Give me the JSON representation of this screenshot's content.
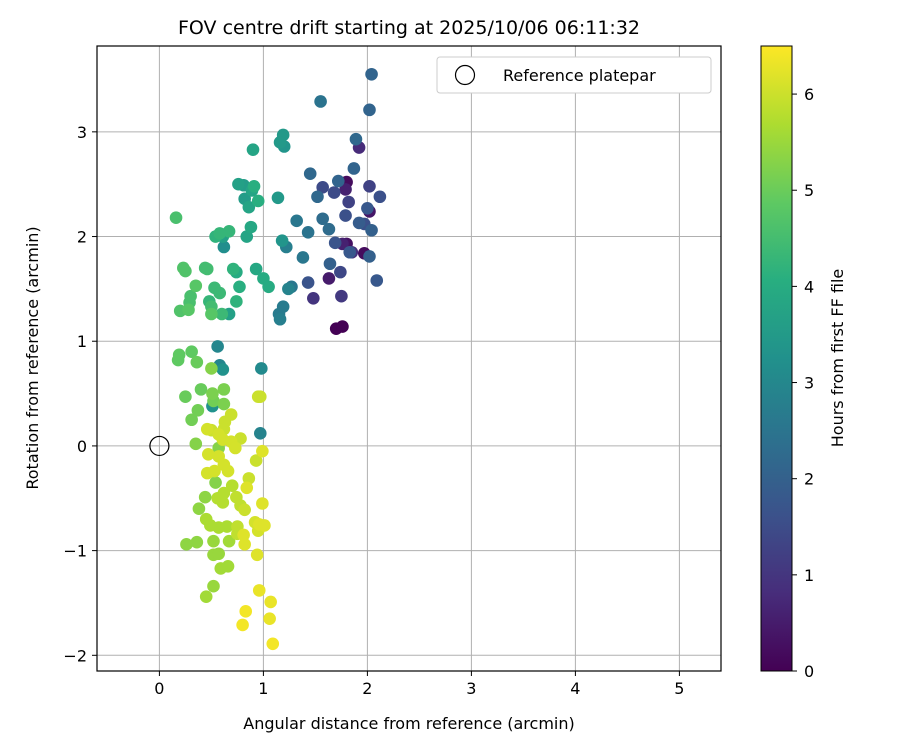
{
  "chart_data": {
    "type": "scatter",
    "title": "FOV centre drift starting at 2025/10/06 06:11:32",
    "xlabel": "Angular distance from reference (arcmin)",
    "ylabel": "Rotation from reference (arcmin)",
    "xlim": [
      -0.6,
      5.4
    ],
    "ylim": [
      -2.15,
      3.82
    ],
    "x_ticks": [
      0,
      1,
      2,
      3,
      4,
      5
    ],
    "y_ticks": [
      -2,
      -1,
      0,
      1,
      2,
      3
    ],
    "grid": true,
    "legend": {
      "placement": "top-right",
      "entries": [
        "Reference platepar"
      ]
    },
    "colorbar": {
      "label": "Hours from first FF file",
      "range": [
        0,
        6.5
      ],
      "ticks": [
        0,
        1,
        2,
        3,
        4,
        5,
        6
      ],
      "colormap": "viridis"
    },
    "reference_point": {
      "x": 0.0,
      "y": 0.0
    },
    "series": [
      {
        "points": [
          {
            "x": 1.7,
            "y": 1.12,
            "t": 0.0
          },
          {
            "x": 1.76,
            "y": 1.14,
            "t": 0.0
          },
          {
            "x": 1.8,
            "y": 2.52,
            "t": 0.2
          },
          {
            "x": 1.97,
            "y": 1.84,
            "t": 0.2
          },
          {
            "x": 1.8,
            "y": 1.93,
            "t": 0.3
          },
          {
            "x": 2.02,
            "y": 2.24,
            "t": 0.4
          },
          {
            "x": 1.63,
            "y": 1.6,
            "t": 0.5
          },
          {
            "x": 1.76,
            "y": 1.93,
            "t": 0.6
          },
          {
            "x": 1.79,
            "y": 2.45,
            "t": 0.6
          },
          {
            "x": 1.92,
            "y": 2.85,
            "t": 0.8
          },
          {
            "x": 1.85,
            "y": 1.85,
            "t": 0.9
          },
          {
            "x": 1.48,
            "y": 1.41,
            "t": 1.0
          },
          {
            "x": 1.75,
            "y": 1.43,
            "t": 1.1
          },
          {
            "x": 2.02,
            "y": 2.48,
            "t": 1.3
          },
          {
            "x": 1.82,
            "y": 2.33,
            "t": 1.3
          },
          {
            "x": 1.74,
            "y": 1.66,
            "t": 1.4
          },
          {
            "x": 1.57,
            "y": 2.47,
            "t": 1.5
          },
          {
            "x": 1.68,
            "y": 2.42,
            "t": 1.5
          },
          {
            "x": 2.12,
            "y": 2.38,
            "t": 1.6
          },
          {
            "x": 1.97,
            "y": 2.12,
            "t": 1.6
          },
          {
            "x": 1.79,
            "y": 2.2,
            "t": 1.6
          },
          {
            "x": 1.43,
            "y": 1.56,
            "t": 1.7
          },
          {
            "x": 1.69,
            "y": 1.94,
            "t": 1.7
          },
          {
            "x": 1.83,
            "y": 1.85,
            "t": 1.8
          },
          {
            "x": 2.09,
            "y": 1.58,
            "t": 1.8
          },
          {
            "x": 2.0,
            "y": 2.27,
            "t": 1.8
          },
          {
            "x": 1.92,
            "y": 2.13,
            "t": 1.9
          },
          {
            "x": 2.04,
            "y": 2.06,
            "t": 2.0
          },
          {
            "x": 2.02,
            "y": 1.81,
            "t": 2.0
          },
          {
            "x": 1.64,
            "y": 1.74,
            "t": 2.0
          },
          {
            "x": 1.72,
            "y": 2.53,
            "t": 2.1
          },
          {
            "x": 1.87,
            "y": 2.65,
            "t": 2.1
          },
          {
            "x": 2.04,
            "y": 3.55,
            "t": 2.1
          },
          {
            "x": 2.02,
            "y": 3.21,
            "t": 2.1
          },
          {
            "x": 1.89,
            "y": 2.93,
            "t": 2.2
          },
          {
            "x": 1.52,
            "y": 2.38,
            "t": 2.2
          },
          {
            "x": 1.45,
            "y": 2.6,
            "t": 2.2
          },
          {
            "x": 1.57,
            "y": 2.17,
            "t": 2.3
          },
          {
            "x": 1.63,
            "y": 2.07,
            "t": 2.3
          },
          {
            "x": 1.43,
            "y": 2.04,
            "t": 2.5
          },
          {
            "x": 1.55,
            "y": 3.29,
            "t": 2.5
          },
          {
            "x": 1.38,
            "y": 1.8,
            "t": 2.6
          },
          {
            "x": 1.27,
            "y": 1.52,
            "t": 2.6
          },
          {
            "x": 1.32,
            "y": 2.15,
            "t": 2.6
          },
          {
            "x": 1.19,
            "y": 1.33,
            "t": 2.7
          },
          {
            "x": 1.15,
            "y": 1.26,
            "t": 2.7
          },
          {
            "x": 1.22,
            "y": 1.9,
            "t": 2.8
          },
          {
            "x": 1.16,
            "y": 1.21,
            "t": 2.8
          },
          {
            "x": 0.97,
            "y": 0.12,
            "t": 2.9
          },
          {
            "x": 1.24,
            "y": 1.5,
            "t": 2.9
          },
          {
            "x": 0.56,
            "y": 0.95,
            "t": 3.0
          },
          {
            "x": 0.58,
            "y": 0.77,
            "t": 3.0
          },
          {
            "x": 0.98,
            "y": 0.74,
            "t": 3.1
          },
          {
            "x": 0.62,
            "y": 1.9,
            "t": 3.2
          },
          {
            "x": 0.61,
            "y": 0.73,
            "t": 3.3
          },
          {
            "x": 0.51,
            "y": 0.38,
            "t": 3.3
          },
          {
            "x": 1.2,
            "y": 2.86,
            "t": 3.4
          },
          {
            "x": 1.18,
            "y": 1.96,
            "t": 3.4
          },
          {
            "x": 1.19,
            "y": 2.97,
            "t": 3.5
          },
          {
            "x": 1.16,
            "y": 2.9,
            "t": 3.5
          },
          {
            "x": 1.14,
            "y": 2.37,
            "t": 3.5
          },
          {
            "x": 0.81,
            "y": 2.49,
            "t": 3.6
          },
          {
            "x": 0.82,
            "y": 2.36,
            "t": 3.6
          },
          {
            "x": 0.67,
            "y": 1.26,
            "t": 3.7
          },
          {
            "x": 0.76,
            "y": 2.5,
            "t": 3.7
          },
          {
            "x": 0.61,
            "y": 2.0,
            "t": 3.7
          },
          {
            "x": 0.89,
            "y": 2.44,
            "t": 3.8
          },
          {
            "x": 0.9,
            "y": 2.83,
            "t": 3.8
          },
          {
            "x": 0.86,
            "y": 2.28,
            "t": 3.8
          },
          {
            "x": 0.84,
            "y": 2.0,
            "t": 3.8
          },
          {
            "x": 0.93,
            "y": 1.69,
            "t": 3.9
          },
          {
            "x": 0.88,
            "y": 2.09,
            "t": 3.9
          },
          {
            "x": 0.74,
            "y": 1.66,
            "t": 4.0
          },
          {
            "x": 1.0,
            "y": 1.6,
            "t": 4.0
          },
          {
            "x": 1.05,
            "y": 1.52,
            "t": 4.0
          },
          {
            "x": 0.95,
            "y": 2.34,
            "t": 4.1
          },
          {
            "x": 0.91,
            "y": 2.48,
            "t": 4.1
          },
          {
            "x": 0.77,
            "y": 1.52,
            "t": 4.1
          },
          {
            "x": 0.71,
            "y": 1.69,
            "t": 4.2
          },
          {
            "x": 0.74,
            "y": 1.38,
            "t": 4.2
          },
          {
            "x": 0.54,
            "y": 2.0,
            "t": 4.2
          },
          {
            "x": 0.67,
            "y": 2.05,
            "t": 4.3
          },
          {
            "x": 0.58,
            "y": 2.03,
            "t": 4.3
          },
          {
            "x": 0.48,
            "y": 1.38,
            "t": 4.3
          },
          {
            "x": 0.53,
            "y": 1.51,
            "t": 4.4
          },
          {
            "x": 0.58,
            "y": 1.46,
            "t": 4.4
          },
          {
            "x": 0.6,
            "y": 1.26,
            "t": 4.4
          },
          {
            "x": 0.5,
            "y": 1.33,
            "t": 4.5
          },
          {
            "x": 0.46,
            "y": 1.69,
            "t": 4.5
          },
          {
            "x": 0.44,
            "y": 1.7,
            "t": 4.5
          },
          {
            "x": 0.29,
            "y": 1.37,
            "t": 4.6
          },
          {
            "x": 0.3,
            "y": 1.43,
            "t": 4.6
          },
          {
            "x": 0.16,
            "y": 2.18,
            "t": 4.6
          },
          {
            "x": 0.25,
            "y": 1.67,
            "t": 4.7
          },
          {
            "x": 0.23,
            "y": 1.7,
            "t": 4.7
          },
          {
            "x": 0.2,
            "y": 1.29,
            "t": 4.7
          },
          {
            "x": 0.35,
            "y": 1.53,
            "t": 4.8
          },
          {
            "x": 0.28,
            "y": 1.3,
            "t": 4.8
          },
          {
            "x": 0.5,
            "y": 1.26,
            "t": 4.8
          },
          {
            "x": 0.19,
            "y": 0.87,
            "t": 4.9
          },
          {
            "x": 0.18,
            "y": 0.82,
            "t": 4.9
          },
          {
            "x": 0.31,
            "y": 0.9,
            "t": 4.9
          },
          {
            "x": 0.36,
            "y": 0.8,
            "t": 5.0
          },
          {
            "x": 0.25,
            "y": 0.47,
            "t": 5.0
          },
          {
            "x": 0.4,
            "y": 0.54,
            "t": 5.0
          },
          {
            "x": 0.37,
            "y": 0.34,
            "t": 5.1
          },
          {
            "x": 0.31,
            "y": 0.25,
            "t": 5.1
          },
          {
            "x": 0.52,
            "y": 0.43,
            "t": 5.1
          },
          {
            "x": 0.51,
            "y": 0.5,
            "t": 5.2
          },
          {
            "x": 0.62,
            "y": 0.54,
            "t": 5.2
          },
          {
            "x": 0.62,
            "y": 0.4,
            "t": 5.2
          },
          {
            "x": 0.5,
            "y": 0.74,
            "t": 5.3
          },
          {
            "x": 0.35,
            "y": 0.02,
            "t": 5.3
          },
          {
            "x": 0.57,
            "y": -0.02,
            "t": 5.3
          },
          {
            "x": 0.54,
            "y": -0.35,
            "t": 5.3
          },
          {
            "x": 0.38,
            "y": -0.6,
            "t": 5.4
          },
          {
            "x": 0.26,
            "y": -0.94,
            "t": 5.4
          },
          {
            "x": 0.36,
            "y": -0.92,
            "t": 5.4
          },
          {
            "x": 0.44,
            "y": -0.49,
            "t": 5.4
          },
          {
            "x": 0.52,
            "y": -0.91,
            "t": 5.5
          },
          {
            "x": 0.52,
            "y": -1.04,
            "t": 5.5
          },
          {
            "x": 0.57,
            "y": -1.03,
            "t": 5.5
          },
          {
            "x": 0.52,
            "y": -1.34,
            "t": 5.5
          },
          {
            "x": 0.45,
            "y": -1.44,
            "t": 5.6
          },
          {
            "x": 0.59,
            "y": -1.17,
            "t": 5.6
          },
          {
            "x": 0.66,
            "y": -1.15,
            "t": 5.6
          },
          {
            "x": 0.67,
            "y": -0.91,
            "t": 5.6
          },
          {
            "x": 0.65,
            "y": -0.77,
            "t": 5.7
          },
          {
            "x": 0.57,
            "y": -0.78,
            "t": 5.7
          },
          {
            "x": 0.45,
            "y": -0.7,
            "t": 5.7
          },
          {
            "x": 0.49,
            "y": -0.76,
            "t": 5.7
          },
          {
            "x": 0.56,
            "y": -0.5,
            "t": 5.8
          },
          {
            "x": 0.61,
            "y": -0.54,
            "t": 5.8
          },
          {
            "x": 0.62,
            "y": -0.45,
            "t": 5.8
          },
          {
            "x": 0.7,
            "y": -0.38,
            "t": 5.8
          },
          {
            "x": 0.74,
            "y": -0.49,
            "t": 5.9
          },
          {
            "x": 0.78,
            "y": -0.57,
            "t": 5.9
          },
          {
            "x": 0.75,
            "y": -0.77,
            "t": 5.9
          },
          {
            "x": 0.75,
            "y": -0.84,
            "t": 5.9
          },
          {
            "x": 0.82,
            "y": -0.61,
            "t": 6.0
          },
          {
            "x": 0.86,
            "y": -0.31,
            "t": 6.0
          },
          {
            "x": 0.93,
            "y": -0.14,
            "t": 6.0
          },
          {
            "x": 0.95,
            "y": 0.47,
            "t": 6.0
          },
          {
            "x": 0.97,
            "y": 0.47,
            "t": 6.0
          },
          {
            "x": 0.78,
            "y": 0.07,
            "t": 6.0
          },
          {
            "x": 0.69,
            "y": 0.3,
            "t": 6.0
          },
          {
            "x": 0.63,
            "y": 0.23,
            "t": 6.0
          },
          {
            "x": 0.62,
            "y": 0.16,
            "t": 6.0
          },
          {
            "x": 0.5,
            "y": 0.15,
            "t": 6.0
          },
          {
            "x": 0.46,
            "y": 0.16,
            "t": 6.1
          },
          {
            "x": 0.57,
            "y": 0.11,
            "t": 6.1
          },
          {
            "x": 0.61,
            "y": 0.06,
            "t": 6.1
          },
          {
            "x": 0.69,
            "y": 0.04,
            "t": 6.1
          },
          {
            "x": 0.73,
            "y": -0.02,
            "t": 6.1
          },
          {
            "x": 0.57,
            "y": -0.1,
            "t": 6.1
          },
          {
            "x": 0.47,
            "y": -0.08,
            "t": 6.1
          },
          {
            "x": 0.46,
            "y": -0.26,
            "t": 6.1
          },
          {
            "x": 0.53,
            "y": -0.24,
            "t": 6.1
          },
          {
            "x": 0.62,
            "y": -0.18,
            "t": 6.1
          },
          {
            "x": 0.66,
            "y": -0.24,
            "t": 6.1
          },
          {
            "x": 0.92,
            "y": -0.73,
            "t": 6.1
          },
          {
            "x": 0.95,
            "y": -0.81,
            "t": 6.1
          },
          {
            "x": 0.96,
            "y": -0.75,
            "t": 6.2
          },
          {
            "x": 1.01,
            "y": -0.76,
            "t": 6.2
          },
          {
            "x": 0.99,
            "y": -0.55,
            "t": 6.2
          },
          {
            "x": 0.99,
            "y": -0.05,
            "t": 6.2
          },
          {
            "x": 0.84,
            "y": -0.4,
            "t": 6.2
          },
          {
            "x": 0.81,
            "y": -0.85,
            "t": 6.2
          },
          {
            "x": 0.82,
            "y": -0.94,
            "t": 6.2
          },
          {
            "x": 0.94,
            "y": -1.04,
            "t": 6.2
          },
          {
            "x": 0.96,
            "y": -1.38,
            "t": 6.3
          },
          {
            "x": 1.07,
            "y": -1.49,
            "t": 6.3
          },
          {
            "x": 1.06,
            "y": -1.65,
            "t": 6.3
          },
          {
            "x": 0.83,
            "y": -1.58,
            "t": 6.4
          },
          {
            "x": 0.8,
            "y": -1.71,
            "t": 6.4
          },
          {
            "x": 1.09,
            "y": -1.89,
            "t": 6.4
          }
        ]
      }
    ]
  }
}
